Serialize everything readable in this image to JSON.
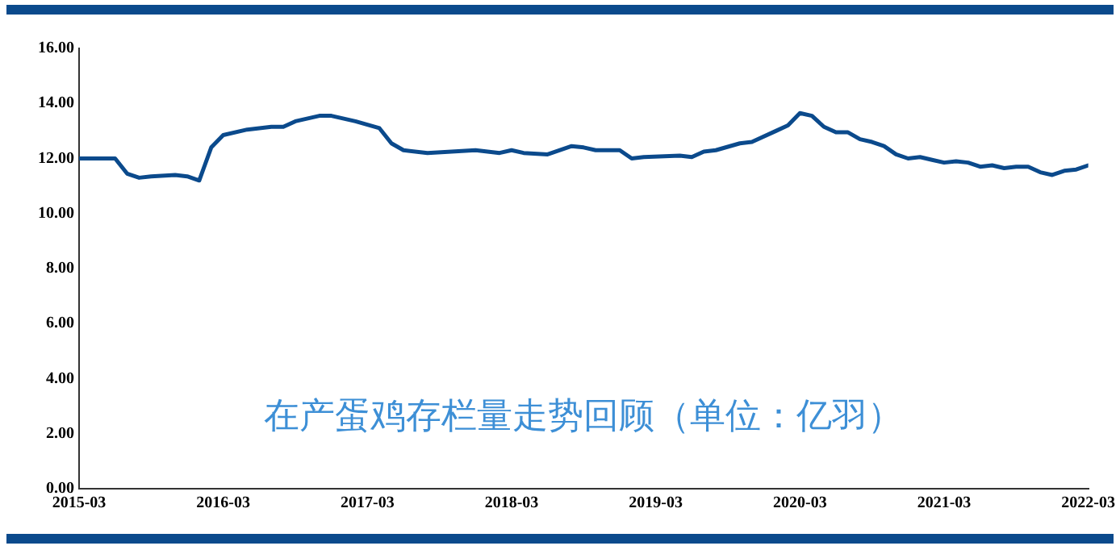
{
  "chart_data": {
    "type": "line",
    "annotations": [
      "在产蛋鸡存栏量走势回顾（单位：亿羽）"
    ],
    "x": [
      "2015-03",
      "2015-06",
      "2015-07",
      "2015-08",
      "2015-09",
      "2015-11",
      "2015-12",
      "2016-01",
      "2016-02",
      "2016-03",
      "2016-05",
      "2016-07",
      "2016-08",
      "2016-09",
      "2016-11",
      "2016-12",
      "2017-02",
      "2017-04",
      "2017-05",
      "2017-06",
      "2017-08",
      "2017-10",
      "2017-12",
      "2018-02",
      "2018-03",
      "2018-04",
      "2018-06",
      "2018-08",
      "2018-09",
      "2018-10",
      "2018-12",
      "2019-01",
      "2019-02",
      "2019-05",
      "2019-06",
      "2019-07",
      "2019-08",
      "2019-10",
      "2019-11",
      "2020-01",
      "2020-02",
      "2020-03",
      "2020-04",
      "2020-05",
      "2020-06",
      "2020-07",
      "2020-08",
      "2020-09",
      "2020-10",
      "2020-11",
      "2020-12",
      "2021-01",
      "2021-02",
      "2021-03",
      "2021-04",
      "2021-05",
      "2021-06",
      "2021-07",
      "2021-08",
      "2021-09",
      "2021-10",
      "2021-11",
      "2021-12",
      "2022-01",
      "2022-02",
      "2022-03"
    ],
    "series": [
      {
        "color": "#0b4a8c",
        "values": [
          12.0,
          12.0,
          11.45,
          11.3,
          11.35,
          11.4,
          11.35,
          11.2,
          12.4,
          12.85,
          13.05,
          13.15,
          13.15,
          13.35,
          13.55,
          13.55,
          13.35,
          13.1,
          12.55,
          12.3,
          12.2,
          12.25,
          12.3,
          12.2,
          12.3,
          12.2,
          12.15,
          12.45,
          12.4,
          12.3,
          12.3,
          12.0,
          12.05,
          12.1,
          12.05,
          12.25,
          12.3,
          12.55,
          12.6,
          13.0,
          13.2,
          13.65,
          13.55,
          13.15,
          12.95,
          12.95,
          12.7,
          12.6,
          12.45,
          12.15,
          12.0,
          12.05,
          11.95,
          11.85,
          11.9,
          11.85,
          11.7,
          11.75,
          11.65,
          11.7,
          11.7,
          11.5,
          11.4,
          11.55,
          11.6,
          11.75
        ]
      }
    ],
    "xlim": [
      "2015-03",
      "2022-03"
    ],
    "xticks": [
      "2015-03",
      "2016-03",
      "2017-03",
      "2018-03",
      "2019-03",
      "2020-03",
      "2021-03",
      "2022-03"
    ],
    "ylim": [
      0,
      16
    ],
    "yticks": [
      {
        "value": 0,
        "label": "0.00"
      },
      {
        "value": 2,
        "label": "2.00"
      },
      {
        "value": 4,
        "label": "4.00"
      },
      {
        "value": 6,
        "label": "6.00"
      },
      {
        "value": 8,
        "label": "8.00"
      },
      {
        "value": 10,
        "label": "10.00"
      },
      {
        "value": 12,
        "label": "12.00"
      },
      {
        "value": 14,
        "label": "14.00"
      },
      {
        "value": 16,
        "label": "16.00"
      }
    ],
    "grid": false,
    "legend": false,
    "marker": "none",
    "line_style": "solid"
  }
}
